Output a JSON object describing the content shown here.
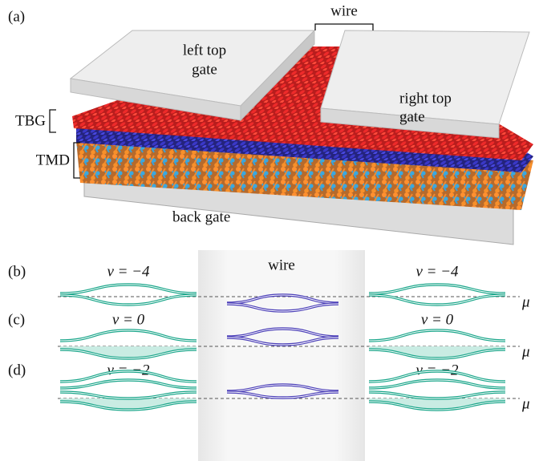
{
  "panel_a": {
    "label": "(a)",
    "wire": "wire",
    "left_gate": [
      "left top",
      "gate"
    ],
    "right_gate": [
      "right top",
      "gate"
    ],
    "tbg": "TBG",
    "tmd": "TMD",
    "back_gate": "back gate"
  },
  "panels": {
    "wire": "wire",
    "rows": [
      {
        "label": "(b)",
        "left": "ν = −4",
        "right": "ν = −4",
        "mu": "μ"
      },
      {
        "label": "(c)",
        "left": "ν = 0",
        "right": "ν = 0",
        "mu": "μ"
      },
      {
        "label": "(d)",
        "left": "ν = −2",
        "right": "ν = −2",
        "mu": "μ"
      }
    ]
  }
}
